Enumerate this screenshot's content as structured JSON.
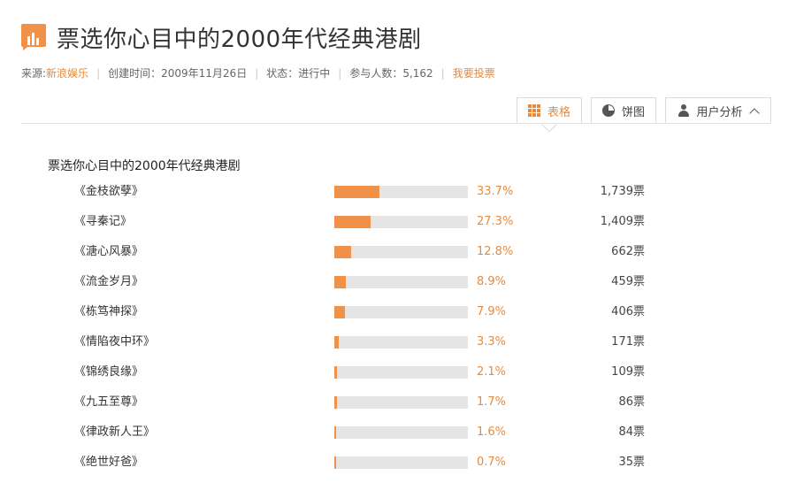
{
  "header": {
    "title": "票选你心目中的2000年代经典港剧",
    "icon": "bar-chart-icon",
    "accent_color": "#f0914a"
  },
  "meta": {
    "source_label": "来源:",
    "source_value": "新浪娱乐",
    "created": "创建时间：2009年11月26日",
    "status": "状态：进行中",
    "participants": "参与人数：5,162",
    "vote_link": "我要投票"
  },
  "toolbar": {
    "table_label": "表格",
    "pie_label": "饼图",
    "user_label": "用户分析",
    "active": "表格"
  },
  "poll": {
    "title": "票选你心目中的2000年代经典港剧",
    "bar_color": "#f0914a",
    "track_color": "#e5e5e5",
    "items": [
      {
        "label": "《金枝欲孽》",
        "percent": "33.7%",
        "fraction": 0.337,
        "votes": "1,739票"
      },
      {
        "label": "《寻秦记》",
        "percent": "27.3%",
        "fraction": 0.273,
        "votes": "1,409票"
      },
      {
        "label": "《溏心风暴》",
        "percent": "12.8%",
        "fraction": 0.128,
        "votes": "662票"
      },
      {
        "label": "《流金岁月》",
        "percent": "8.9%",
        "fraction": 0.089,
        "votes": "459票"
      },
      {
        "label": "《栋笃神探》",
        "percent": "7.9%",
        "fraction": 0.079,
        "votes": "406票"
      },
      {
        "label": "《情陷夜中环》",
        "percent": "3.3%",
        "fraction": 0.033,
        "votes": "171票"
      },
      {
        "label": "《锦绣良缘》",
        "percent": "2.1%",
        "fraction": 0.021,
        "votes": "109票"
      },
      {
        "label": "《九五至尊》",
        "percent": "1.7%",
        "fraction": 0.017,
        "votes": "86票"
      },
      {
        "label": "《律政新人王》",
        "percent": "1.6%",
        "fraction": 0.016,
        "votes": "84票"
      },
      {
        "label": "《绝世好爸》",
        "percent": "0.7%",
        "fraction": 0.007,
        "votes": "35票"
      }
    ]
  }
}
